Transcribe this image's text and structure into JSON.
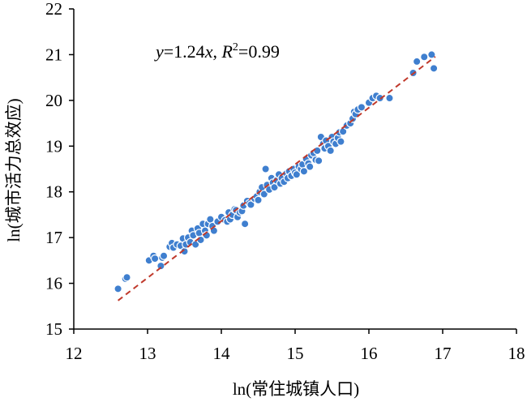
{
  "chart_data": {
    "type": "scatter",
    "title": "",
    "xlabel": "ln(常住城镇人口)",
    "ylabel": "ln(城市活力总效应)",
    "xlim": [
      12,
      18
    ],
    "ylim": [
      15,
      22
    ],
    "x_ticks": [
      "12",
      "13",
      "14",
      "15",
      "16",
      "17",
      "18"
    ],
    "y_ticks": [
      "15",
      "16",
      "17",
      "18",
      "19",
      "20",
      "21",
      "22"
    ],
    "grid": false,
    "legend": "none",
    "annotation": {
      "y_var": "y",
      "eq_mid": "=1.24",
      "x_var": "x",
      "sep": ", ",
      "r_var": "R",
      "r_sup": "2",
      "r_val": "=0.99"
    },
    "fit_line": {
      "slope": 1.24,
      "x_range": [
        12.6,
        16.9
      ],
      "color": "#c0392b"
    },
    "point_color": "#3f7fcf",
    "series": [
      {
        "values": [
          [
            12.6,
            15.88
          ],
          [
            12.7,
            16.1
          ],
          [
            12.72,
            16.13
          ],
          [
            13.02,
            16.5
          ],
          [
            13.08,
            16.6
          ],
          [
            13.1,
            16.54
          ],
          [
            13.18,
            16.38
          ],
          [
            13.2,
            16.56
          ],
          [
            13.22,
            16.6
          ],
          [
            13.3,
            16.8
          ],
          [
            13.33,
            16.88
          ],
          [
            13.35,
            16.78
          ],
          [
            13.4,
            16.85
          ],
          [
            13.45,
            16.82
          ],
          [
            13.48,
            16.98
          ],
          [
            13.5,
            16.7
          ],
          [
            13.52,
            16.85
          ],
          [
            13.55,
            17.0
          ],
          [
            13.58,
            16.9
          ],
          [
            13.6,
            17.15
          ],
          [
            13.62,
            17.05
          ],
          [
            13.65,
            16.85
          ],
          [
            13.68,
            17.2
          ],
          [
            13.7,
            17.1
          ],
          [
            13.72,
            16.95
          ],
          [
            13.75,
            17.3
          ],
          [
            13.78,
            17.15
          ],
          [
            13.8,
            17.05
          ],
          [
            13.82,
            17.3
          ],
          [
            13.85,
            17.4
          ],
          [
            13.88,
            17.25
          ],
          [
            13.9,
            17.15
          ],
          [
            13.95,
            17.35
          ],
          [
            14.0,
            17.45
          ],
          [
            14.05,
            17.38
          ],
          [
            14.08,
            17.35
          ],
          [
            14.1,
            17.55
          ],
          [
            14.12,
            17.4
          ],
          [
            14.15,
            17.5
          ],
          [
            14.18,
            17.62
          ],
          [
            14.2,
            17.6
          ],
          [
            14.22,
            17.45
          ],
          [
            14.25,
            17.55
          ],
          [
            14.28,
            17.58
          ],
          [
            14.3,
            17.7
          ],
          [
            14.32,
            17.3
          ],
          [
            14.35,
            17.8
          ],
          [
            14.38,
            17.75
          ],
          [
            14.4,
            17.72
          ],
          [
            14.45,
            17.85
          ],
          [
            14.48,
            17.9
          ],
          [
            14.5,
            17.82
          ],
          [
            14.52,
            18.0
          ],
          [
            14.55,
            18.1
          ],
          [
            14.58,
            17.95
          ],
          [
            14.6,
            18.5
          ],
          [
            14.62,
            18.15
          ],
          [
            14.65,
            18.05
          ],
          [
            14.68,
            18.3
          ],
          [
            14.7,
            18.2
          ],
          [
            14.72,
            18.1
          ],
          [
            14.75,
            18.25
          ],
          [
            14.78,
            18.38
          ],
          [
            14.8,
            18.18
          ],
          [
            14.82,
            18.3
          ],
          [
            14.85,
            18.22
          ],
          [
            14.88,
            18.4
          ],
          [
            14.9,
            18.3
          ],
          [
            14.92,
            18.45
          ],
          [
            14.95,
            18.35
          ],
          [
            14.98,
            18.5
          ],
          [
            15.0,
            18.42
          ],
          [
            15.02,
            18.38
          ],
          [
            15.05,
            18.55
          ],
          [
            15.08,
            18.5
          ],
          [
            15.1,
            18.6
          ],
          [
            15.12,
            18.45
          ],
          [
            15.15,
            18.72
          ],
          [
            15.18,
            18.62
          ],
          [
            15.2,
            18.55
          ],
          [
            15.22,
            18.8
          ],
          [
            15.25,
            18.85
          ],
          [
            15.28,
            18.7
          ],
          [
            15.3,
            18.9
          ],
          [
            15.32,
            18.68
          ],
          [
            15.35,
            19.2
          ],
          [
            15.38,
            19.05
          ],
          [
            15.4,
            18.95
          ],
          [
            15.42,
            19.12
          ],
          [
            15.45,
            19.0
          ],
          [
            15.48,
            18.9
          ],
          [
            15.5,
            19.2
          ],
          [
            15.52,
            19.1
          ],
          [
            15.55,
            19.05
          ],
          [
            15.58,
            19.18
          ],
          [
            15.6,
            19.3
          ],
          [
            15.62,
            19.1
          ],
          [
            15.65,
            19.32
          ],
          [
            15.7,
            19.45
          ],
          [
            15.75,
            19.5
          ],
          [
            15.78,
            19.6
          ],
          [
            15.8,
            19.75
          ],
          [
            15.82,
            19.7
          ],
          [
            15.85,
            19.8
          ],
          [
            15.9,
            19.85
          ],
          [
            16.0,
            19.95
          ],
          [
            16.05,
            20.05
          ],
          [
            16.1,
            20.1
          ],
          [
            16.15,
            20.05
          ],
          [
            16.28,
            20.05
          ],
          [
            16.6,
            20.6
          ],
          [
            16.65,
            20.85
          ],
          [
            16.75,
            20.95
          ],
          [
            16.85,
            21.0
          ],
          [
            16.88,
            20.7
          ]
        ]
      }
    ]
  }
}
